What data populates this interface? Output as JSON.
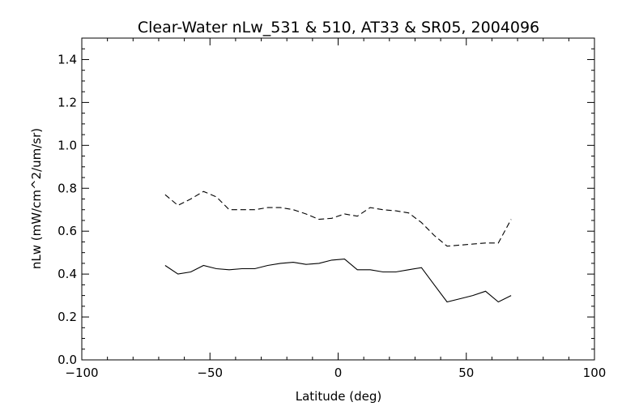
{
  "chart_data": {
    "type": "line",
    "title": "Clear-Water nLw_531 & 510, AT33 & SR05, 2004096",
    "xlabel": "Latitude (deg)",
    "ylabel": "nLw (mW/cm^2/um/sr)",
    "xlim": [
      -100,
      100
    ],
    "ylim": [
      0.0,
      1.5
    ],
    "grid": false,
    "x_ticks": [
      "−100",
      "−50",
      "0",
      "50",
      "100"
    ],
    "y_ticks": [
      "0.0",
      "0.2",
      "0.4",
      "0.6",
      "0.8",
      "1.0",
      "1.2",
      "1.4"
    ],
    "series": [
      {
        "style": "dashed",
        "color": "#000000",
        "x": [
          -67.5,
          -62.5,
          -57.5,
          -52.5,
          -47.5,
          -42.5,
          -37.5,
          -32.5,
          -27.5,
          -22.5,
          -17.5,
          -12.5,
          -7.5,
          -2.5,
          2.5,
          7.5,
          12.5,
          17.5,
          22.5,
          27.5,
          32.5,
          37.5,
          42.5,
          47.5,
          52.5,
          57.5,
          62.5,
          67.5
        ],
        "y": [
          0.77,
          0.72,
          0.75,
          0.785,
          0.76,
          0.7,
          0.7,
          0.7,
          0.71,
          0.71,
          0.7,
          0.68,
          0.655,
          0.66,
          0.68,
          0.67,
          0.71,
          0.7,
          0.695,
          0.685,
          0.64,
          0.58,
          0.53,
          0.535,
          0.54,
          0.545,
          0.545,
          0.655
        ]
      },
      {
        "style": "solid",
        "color": "#000000",
        "x": [
          -67.5,
          -62.5,
          -57.5,
          -52.5,
          -47.5,
          -42.5,
          -37.5,
          -32.5,
          -27.5,
          -22.5,
          -17.5,
          -12.5,
          -7.5,
          -2.5,
          2.5,
          7.5,
          12.5,
          17.5,
          22.5,
          27.5,
          32.5,
          37.5,
          42.5,
          47.5,
          52.5,
          57.5,
          62.5,
          67.5
        ],
        "y": [
          0.44,
          0.4,
          0.41,
          0.44,
          0.425,
          0.42,
          0.425,
          0.425,
          0.44,
          0.45,
          0.455,
          0.445,
          0.45,
          0.465,
          0.47,
          0.42,
          0.42,
          0.41,
          0.41,
          0.42,
          0.43,
          0.35,
          0.27,
          0.285,
          0.3,
          0.32,
          0.27,
          0.3
        ]
      }
    ]
  }
}
